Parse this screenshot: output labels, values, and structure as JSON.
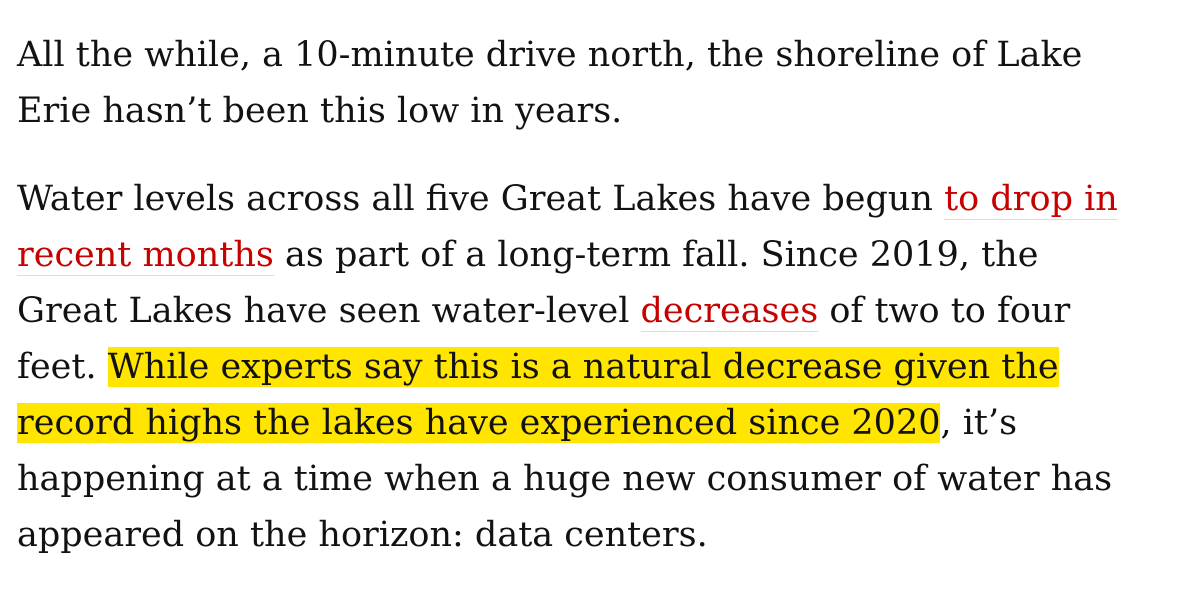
{
  "paragraphs": [
    {
      "lines": [
        [
          {
            "text": "All the while, a 10-minute drive north, the shoreline of Lake"
          }
        ],
        [
          {
            "text": "Erie hasn’t been this low in years."
          }
        ]
      ]
    },
    {
      "lines": [
        [
          {
            "text": "Water levels across all five Great Lakes have begun "
          },
          {
            "text": "to drop in",
            "style": "link"
          }
        ],
        [
          {
            "text": "recent months",
            "style": "link"
          },
          {
            "text": " as part of a long-term fall. Since 2019, the"
          }
        ],
        [
          {
            "text": "Great Lakes have seen water-level "
          },
          {
            "text": "decreases",
            "style": "link"
          },
          {
            "text": " of two to four"
          }
        ],
        [
          {
            "text": "feet. "
          },
          {
            "text": "While experts say this is a natural decrease given the",
            "style": "highlight"
          }
        ],
        [
          {
            "text": "record highs the lakes have experienced since 2020",
            "style": "highlight"
          },
          {
            "text": ", it’s"
          }
        ],
        [
          {
            "text": "happening at a time when a huge new consumer of water has"
          }
        ],
        [
          {
            "text": "appeared on the horizon: data centers."
          }
        ]
      ]
    }
  ]
}
